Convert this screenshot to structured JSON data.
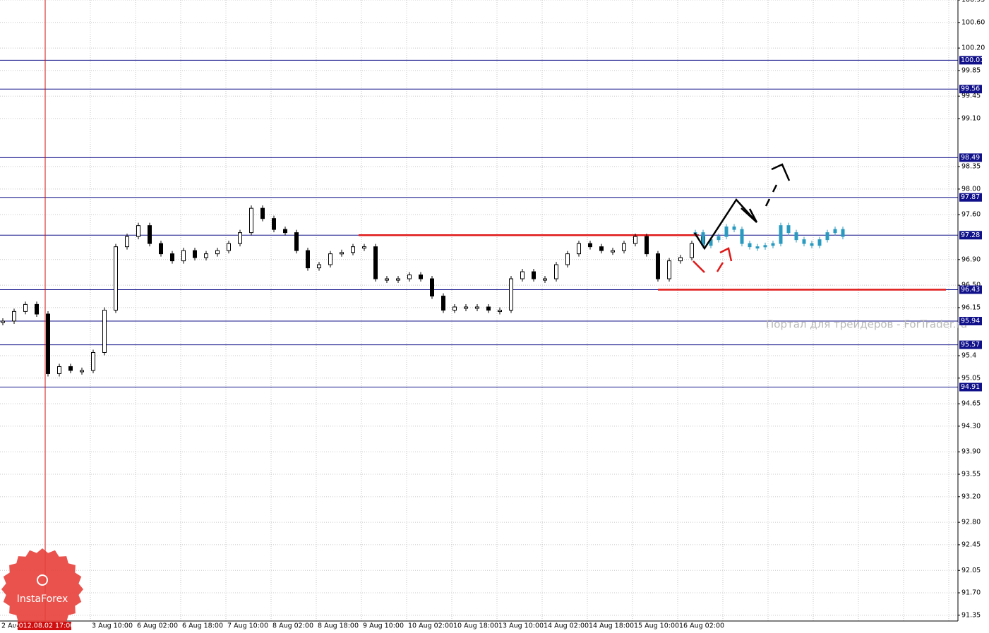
{
  "chart_data": {
    "type": "candlestick",
    "ylim": [
      91.26,
      100.95
    ],
    "yticks": [
      {
        "value": 100.95,
        "label": "100.95"
      },
      {
        "value": 100.6,
        "label": "100.60"
      },
      {
        "value": 100.2,
        "label": "100.20"
      },
      99.85,
      99.45,
      {
        "value": 99.1,
        "label": "99.10"
      },
      98.35,
      {
        "value": 98.0,
        "label": "98.00"
      },
      {
        "value": 97.6,
        "label": "97.60"
      },
      {
        "value": 96.9,
        "label": "96.90"
      },
      {
        "value": 96.5,
        "label": "96.50"
      },
      96.15,
      95.4,
      95.05,
      94.65,
      {
        "value": 94.3,
        "label": "94.30"
      },
      {
        "value": 93.9,
        "label": "93.90"
      },
      93.55,
      {
        "value": 93.2,
        "label": "93.20"
      },
      {
        "value": 92.8,
        "label": "92.80"
      },
      92.45,
      92.05,
      {
        "value": 91.7,
        "label": "91.70"
      },
      91.35
    ],
    "levels": [
      100.01,
      99.56,
      98.49,
      97.87,
      97.28,
      96.43,
      95.94,
      95.57,
      94.91
    ],
    "trend_lines": [
      {
        "value": 97.28,
        "color": "#e01818"
      },
      {
        "value": 96.43,
        "color": "#e01818"
      }
    ],
    "x_labels": [
      "2 Aug",
      "3 Aug 10:00",
      "6 Aug 02:00",
      "6 Aug 18:00",
      "7 Aug 10:00",
      "8 Aug 02:00",
      "8 Aug 18:00",
      "9 Aug 10:00",
      "10 Aug 02:00",
      "10 Aug 18:00",
      "13 Aug 10:00",
      "14 Aug 02:00",
      "14 Aug 18:00",
      "15 Aug 10:00",
      "16 Aug 02:00"
    ],
    "crosshair_label": "2012.08.02 17:00",
    "series": [
      {
        "color": "#000000",
        "values": [
          95.94,
          96.09,
          96.2,
          96.05,
          95.12,
          95.23,
          95.17,
          95.17,
          95.45,
          96.11,
          97.1,
          97.26,
          97.43,
          97.15,
          96.99,
          96.88,
          97.04,
          96.93,
          96.99,
          97.04,
          97.15,
          97.32,
          97.7,
          97.54,
          97.37,
          97.32,
          97.04,
          96.77,
          96.82,
          96.99,
          97.01,
          97.1,
          97.1,
          96.6,
          96.6,
          96.6,
          96.66,
          96.6,
          96.33,
          96.11,
          96.16,
          96.16,
          96.16,
          96.11,
          96.11,
          96.6,
          96.71,
          96.6,
          96.6,
          96.82,
          96.99,
          97.15,
          97.1,
          97.04,
          97.04,
          97.15,
          97.26,
          96.99,
          96.6,
          96.88,
          96.93,
          97.15,
          97.26
        ]
      },
      {
        "color": "#2a9bc0",
        "values": [
          97.32,
          97.12,
          97.21,
          97.26,
          97.41,
          97.37,
          97.15,
          97.1,
          97.1,
          97.12,
          97.15,
          97.43,
          97.32,
          97.21,
          97.15,
          97.12,
          97.21,
          97.32,
          97.37,
          97.26
        ]
      }
    ],
    "watermark": "Портал для трейдеров - ForTrader.ru",
    "logo": "InstaForex"
  }
}
